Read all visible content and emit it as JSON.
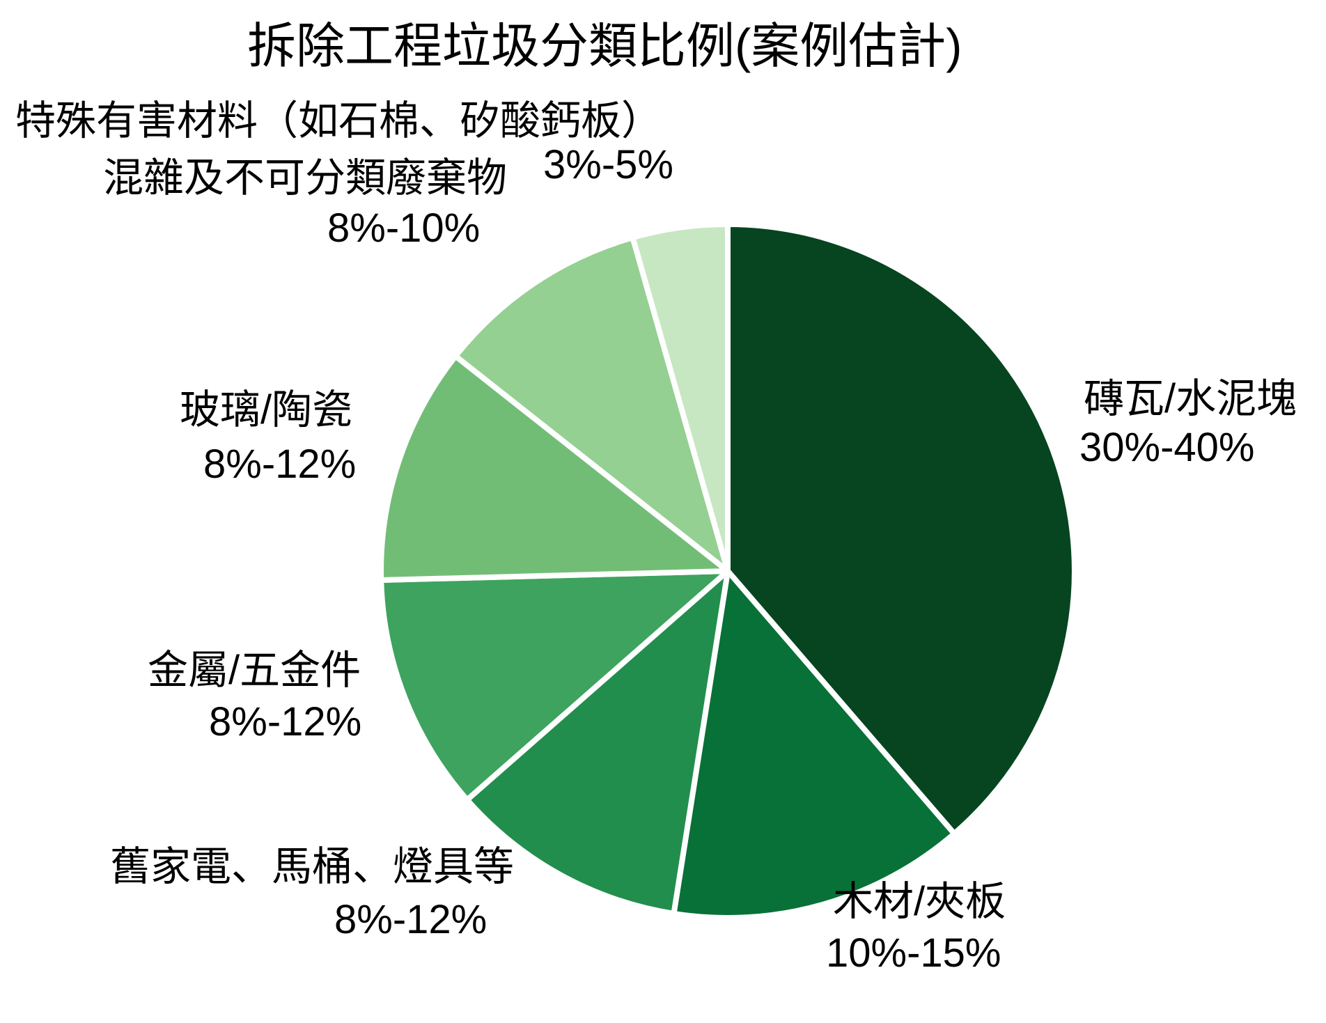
{
  "title": "拆除工程垃圾分類比例(案例估計)",
  "chart_data": {
    "type": "pie",
    "title": "拆除工程垃圾分類比例(案例估計)",
    "legend": "none",
    "labels_position": "outside",
    "start_angle": "12-o'clock, clockwise",
    "slice_divider_color": "#ffffff",
    "background_color": "#ffffff",
    "slices": [
      {
        "label": "磚瓦/水泥塊",
        "range": "30%-40%",
        "value_mid_pct": 35,
        "color": "#06451f"
      },
      {
        "label": "木材/夾板",
        "range": "10%-15%",
        "value_mid_pct": 12.5,
        "color": "#087138"
      },
      {
        "label": "舊家電、馬桶、燈具等",
        "range": "8%-12%",
        "value_mid_pct": 10,
        "color": "#228e4d"
      },
      {
        "label": "金屬/五金件",
        "range": "8%-12%",
        "value_mid_pct": 10,
        "color": "#3da35e"
      },
      {
        "label": "玻璃/陶瓷",
        "range": "8%-12%",
        "value_mid_pct": 10,
        "color": "#72bd76"
      },
      {
        "label": "混雜及不可分類廢棄物",
        "range": "8%-10%",
        "value_mid_pct": 9,
        "color": "#94d092"
      },
      {
        "label": "特殊有害材料（如石棉、矽酸鈣板）",
        "range": "3%-5%",
        "value_mid_pct": 4,
        "color": "#c7e7c2"
      }
    ]
  }
}
